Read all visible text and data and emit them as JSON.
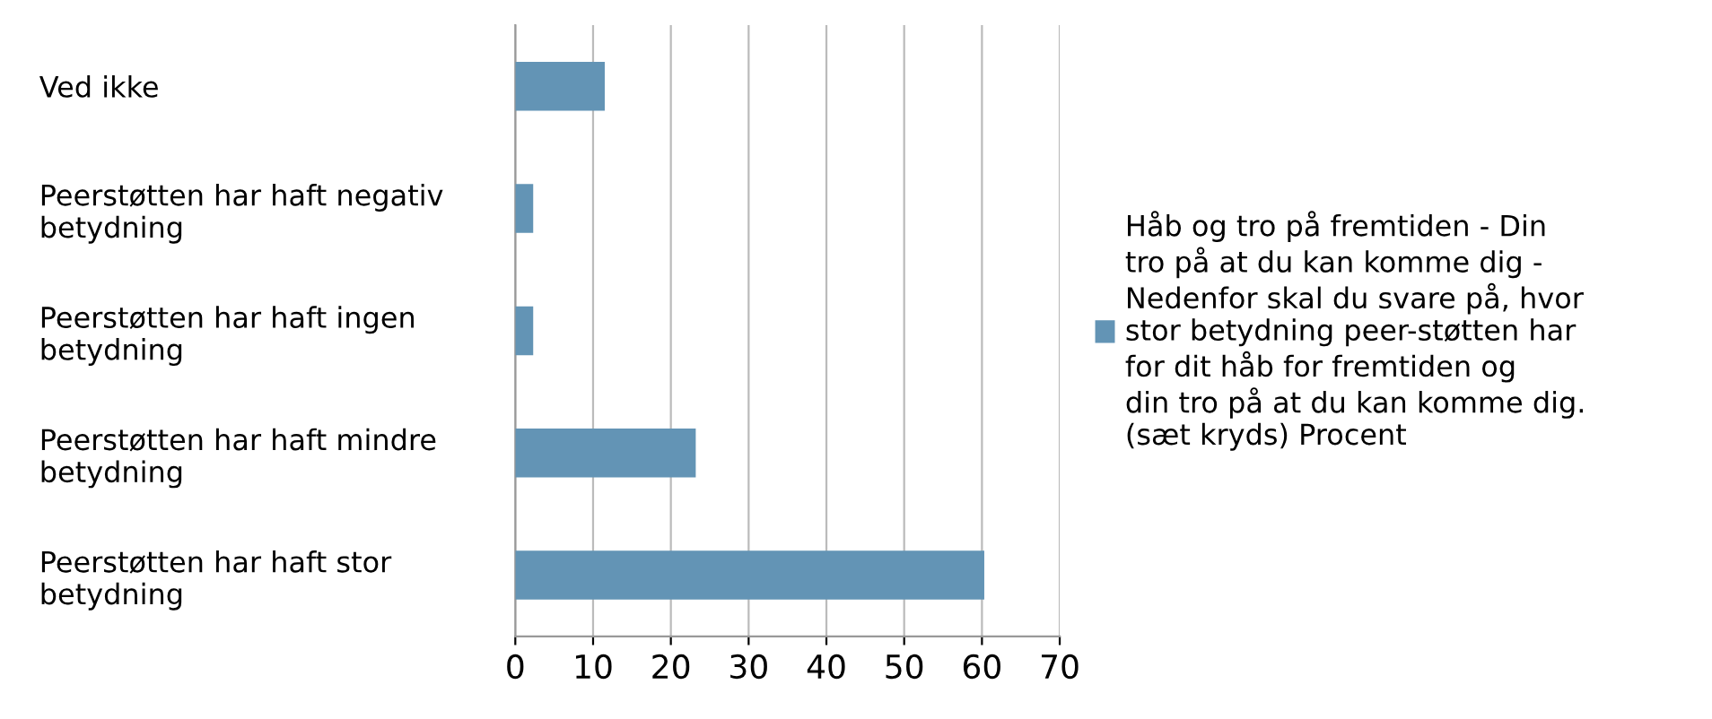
{
  "chart_data": {
    "type": "bar",
    "orientation": "horizontal",
    "categories": [
      "Ved ikke",
      "Peerstøtten har haft negativ betydning",
      "Peerstøtten har haft ingen betydning",
      "Peerstøtten har haft mindre betydning",
      "Peerstøtten har haft stor betydning"
    ],
    "series": [
      {
        "name": "Håb og tro på fremtiden - Din tro på at du kan komme dig - Nedenfor skal du svare på, hvor stor betydning peer-støtten har for dit håb for fremtiden og din tro på at du kan komme dig. (sæt kryds) Procent",
        "color": "#6394b5",
        "values": [
          11.5,
          2.3,
          2.3,
          23.2,
          60.3
        ]
      }
    ],
    "xlim": [
      0,
      70
    ],
    "xticks": [
      0,
      10,
      20,
      30,
      40,
      50,
      60,
      70
    ],
    "grid": "x",
    "legend": "right"
  }
}
